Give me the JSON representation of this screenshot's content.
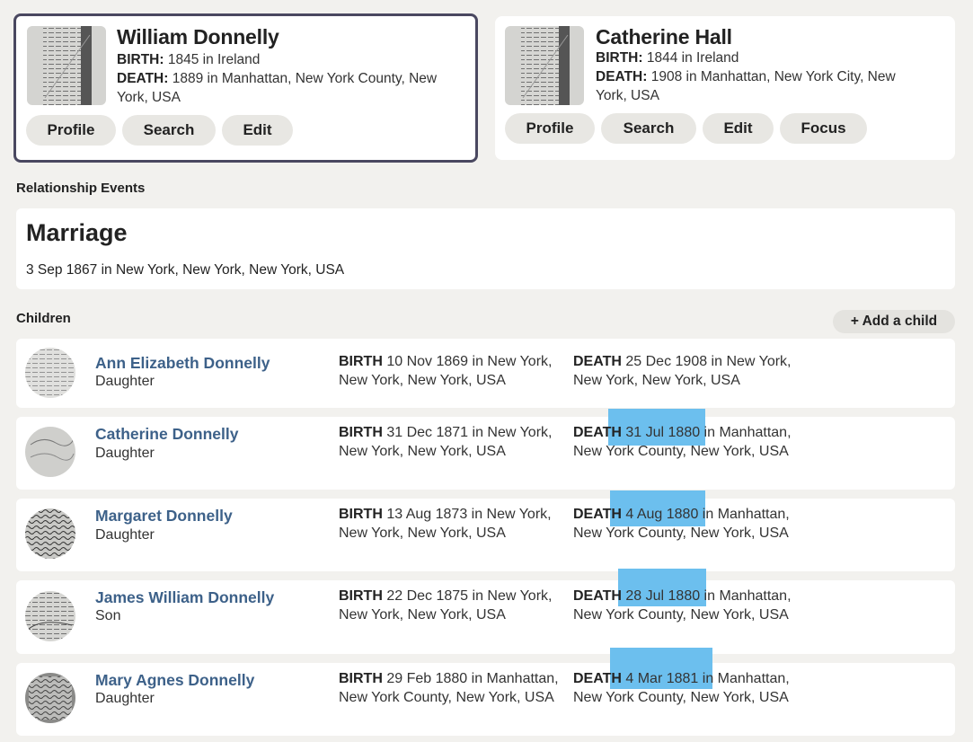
{
  "father": {
    "name": "William Donnelly",
    "birth_label": "BIRTH:",
    "birth_value": "1845 in Ireland",
    "death_label": "DEATH:",
    "death_value": "1889 in Manhattan, New York County, New York, USA",
    "buttons": {
      "profile": "Profile",
      "search": "Search",
      "edit": "Edit"
    }
  },
  "mother": {
    "name": "Catherine Hall",
    "birth_label": "BIRTH:",
    "birth_value": "1844 in Ireland",
    "death_label": "DEATH:",
    "death_value": "1908 in Manhattan, New York City, New York, USA",
    "buttons": {
      "profile": "Profile",
      "search": "Search",
      "edit": "Edit",
      "focus": "Focus"
    }
  },
  "relationship_events": {
    "heading": "Relationship Events",
    "title": "Marriage",
    "detail": "3 Sep 1867 in New York, New York, New York, USA"
  },
  "children_section": {
    "heading": "Children",
    "add_child_label": "+ Add a child"
  },
  "labels": {
    "birth": "BIRTH",
    "death": "DEATH"
  },
  "children": [
    {
      "name": "Ann Elizabeth Donnelly",
      "relation": "Daughter",
      "birth": "10 Nov 1869 in New York, New York, New York, USA",
      "death": "25 Dec 1908 in New York, New York, New York, USA"
    },
    {
      "name": "Catherine Donnelly",
      "relation": "Daughter",
      "birth": "31 Dec 1871 in New York, New York, New York, USA",
      "death": "31 Jul 1880 in Manhattan, New York County, New York, USA"
    },
    {
      "name": "Margaret Donnelly",
      "relation": "Daughter",
      "birth": "13 Aug 1873 in New York, New York, New York, USA",
      "death": "4 Aug 1880 in Manhattan, New York County, New York, USA"
    },
    {
      "name": "James William Donnelly",
      "relation": "Son",
      "birth": "22 Dec 1875 in New York, New York, New York, USA",
      "death": "28 Jul 1880 in Manhattan, New York County, New York, USA"
    },
    {
      "name": "Mary Agnes Donnelly",
      "relation": "Daughter",
      "birth": "29 Feb 1880 in Manhattan, New York County, New York, USA",
      "death": "4 Mar 1881 in Manhattan, New York County, New York, USA"
    }
  ],
  "colors": {
    "link": "#3d6189",
    "highlight": "#6cbfee",
    "selected_border": "#4a4860",
    "background": "#f2f1ee"
  },
  "icons": {
    "record_thumbnail": "document-record-thumbnail"
  }
}
